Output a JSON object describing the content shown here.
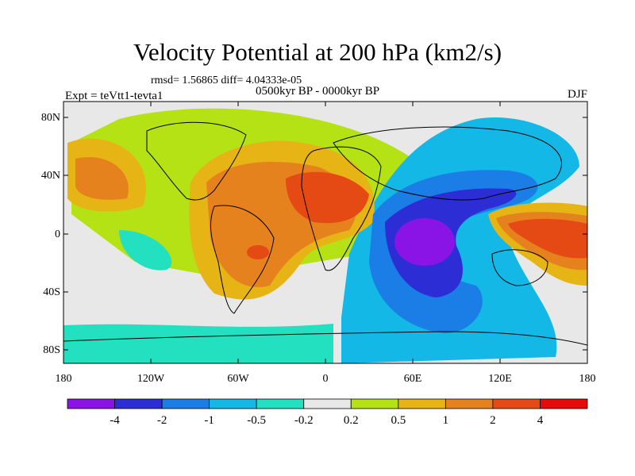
{
  "title": "Velocity Potential at 200 hPa (km2/s)",
  "subtitle": "rmsd= 1.56865 diff= 4.04333e-05",
  "left_label": "Expt = teVtt1-tevta1",
  "center_label": "0500kyr BP - 0000kyr BP",
  "right_label": "DJF",
  "lat_ticks": [
    "80N",
    "40N",
    "0",
    "40S",
    "80S"
  ],
  "lon_ticks": [
    "180",
    "120W",
    "60W",
    "0",
    "60E",
    "120E",
    "180"
  ],
  "colorbar": {
    "labels": [
      "-4",
      "-2",
      "-1",
      "-0.5",
      "-0.2",
      "0.2",
      "0.5",
      "1",
      "2",
      "4"
    ],
    "colors": [
      "#8a14e6",
      "#2d2dd6",
      "#1a7ee6",
      "#14b8e6",
      "#22e0c0",
      "#e8e8e8",
      "#b4e214",
      "#e6b414",
      "#e6821e",
      "#e64a14",
      "#e60a0a"
    ]
  }
}
